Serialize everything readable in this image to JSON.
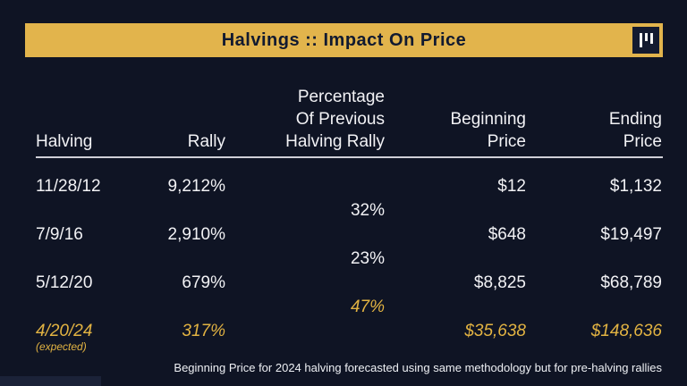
{
  "colors": {
    "background": "#0f1424",
    "banner_gold": "#e2b44c",
    "banner_text": "#111a30",
    "text_white": "#f2f2f5",
    "highlight_gold": "#e2b342",
    "divider": "#cfcfd6"
  },
  "banner": {
    "title": "Halvings :: Impact On Price",
    "logo_icon": "three-vertical-bars-logo"
  },
  "table": {
    "headers": {
      "halving": "Halving",
      "rally": "Rally",
      "pct": [
        "Percentage",
        "Of Previous",
        "Halving Rally"
      ],
      "beginning": [
        "Beginning",
        "Price"
      ],
      "ending": [
        "Ending",
        "Price"
      ]
    },
    "rows": [
      {
        "halving": "11/28/12",
        "sub": "",
        "rally": "9,212%",
        "beginning": "$12",
        "ending": "$1,132"
      },
      {
        "halving": "7/9/16",
        "sub": "",
        "rally": "2,910%",
        "beginning": "$648",
        "ending": "$19,497"
      },
      {
        "halving": "5/12/20",
        "sub": "",
        "rally": "679%",
        "beginning": "$8,825",
        "ending": "$68,789"
      },
      {
        "halving": "4/20/24",
        "sub": "(expected)",
        "rally": "317%",
        "beginning": "$35,638",
        "ending": "$148,636"
      }
    ],
    "interleaves": [
      "32%",
      "23%",
      "47%"
    ]
  },
  "footnote": "Beginning Price for 2024 halving forecasted using same methodology but for pre-halving rallies",
  "chart_data": {
    "type": "table",
    "title": "Halvings :: Impact On Price",
    "columns": [
      "Halving",
      "Rally",
      "Percentage Of Previous Halving Rally",
      "Beginning Price",
      "Ending Price"
    ],
    "rows": [
      [
        "11/28/12",
        "9,212%",
        "",
        "$12",
        "$1,132"
      ],
      [
        "7/9/16",
        "2,910%",
        "32%",
        "$648",
        "$19,497"
      ],
      [
        "5/12/20",
        "679%",
        "23%",
        "$8,825",
        "$68,789"
      ],
      [
        "4/20/24 (expected)",
        "317%",
        "47%",
        "$35,638",
        "$148,636"
      ]
    ],
    "layout_hint": "Percentage-of-previous-rally values (32%, 23%, 47%) are rendered between consecutive rows; final row and 47% are gold italic (forecast)",
    "footnote": "Beginning Price for 2024 halving forecasted using same methodology but for pre-halving rallies"
  }
}
